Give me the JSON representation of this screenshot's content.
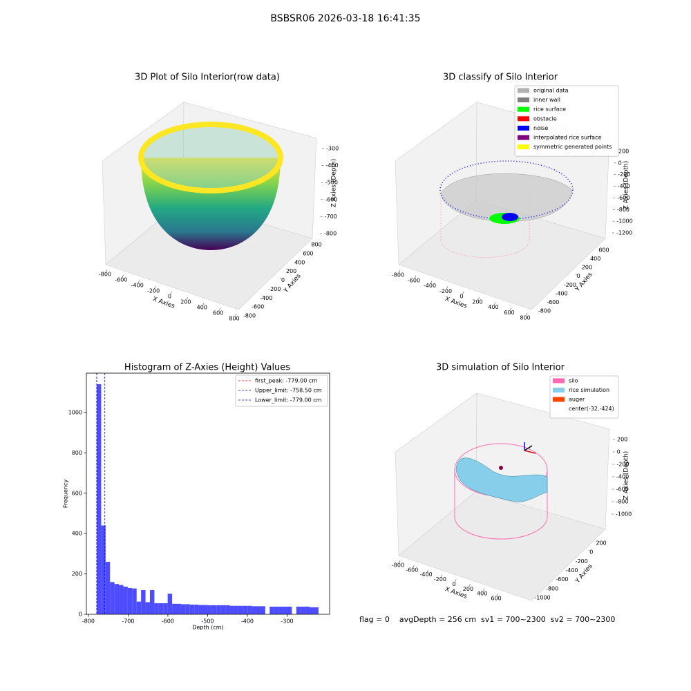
{
  "title": "BSBSR06 2026-03-18 16:41:35",
  "footer": "flag = 0    avgDepth = 256 cm  sv1 = 700~2300  sv2 = 700~2300",
  "chart_data": [
    {
      "type": "surface3d",
      "title": "3D Plot of Silo Interior(row data)",
      "xlabel": "X Axies",
      "ylabel": "Y Axies",
      "zlabel": "Z Axies (Depth)",
      "xlim": [
        -800,
        800
      ],
      "ylim": [
        -800,
        800
      ],
      "zlim": [
        -800,
        -300
      ],
      "xticks": [
        -800,
        -600,
        -400,
        -200,
        0,
        200,
        400,
        600,
        800
      ],
      "yticks": [
        -800,
        -600,
        -400,
        -200,
        0,
        200,
        400,
        600,
        800
      ],
      "zticks": [
        -800,
        -700,
        -600,
        -500,
        -400,
        -300
      ]
    },
    {
      "type": "scatter3d",
      "title": "3D classify of Silo Interior",
      "xlabel": "X Axies",
      "ylabel": "Y Axies",
      "zlabel": "Z Axies (Depth)",
      "xlim": [
        -800,
        800
      ],
      "ylim": [
        -800,
        600
      ],
      "zlim": [
        -1200,
        200
      ],
      "xticks": [
        -800,
        -600,
        -400,
        -200,
        0,
        200,
        400,
        600,
        800
      ],
      "yticks": [
        -800,
        -600,
        -400,
        -200,
        0,
        200,
        400,
        600
      ],
      "zticks": [
        -1200,
        -1000,
        -800,
        -600,
        -400,
        -200,
        0,
        200
      ],
      "legend_items": [
        {
          "name": "original data",
          "color": "#b0b0b0"
        },
        {
          "name": "inner wall",
          "color": "#808080"
        },
        {
          "name": "rice surface",
          "color": "#00ff00"
        },
        {
          "name": "obstacle",
          "color": "#ff0000"
        },
        {
          "name": "noise",
          "color": "#0000ff"
        },
        {
          "name": "interpolated rice surface",
          "color": "#800080"
        },
        {
          "name": "symmetric generated points",
          "color": "#ffff00"
        }
      ]
    },
    {
      "type": "histogram",
      "title": "Histogram of Z-Axies (Height) Values",
      "xlabel": "Depth (cm)",
      "ylabel": "Frequency",
      "color": "#4d4dff",
      "bins": [
        -779,
        -767.84,
        -756.68,
        -745.52,
        -734.36,
        -723.2,
        -712.04,
        -700.88,
        -689.72,
        -678.56,
        -667.4,
        -656.24,
        -645.08,
        -633.92,
        -622.76,
        -611.6,
        -600.44,
        -589.28,
        -578.12,
        -566.96,
        -555.8,
        -544.64,
        -533.48,
        -522.32,
        -511.16,
        -500,
        -488.84,
        -477.68,
        -466.52,
        -455.36,
        -444.2,
        -433.04,
        -421.88,
        -410.72,
        -399.56,
        -388.4,
        -377.24,
        -366.08,
        -354.92,
        -343.76,
        -332.6,
        -321.44,
        -310.28,
        -299.12,
        -287.96,
        -276.8,
        -265.64,
        -254.48,
        -243.32,
        -232.16,
        -221
      ],
      "values": [
        1140,
        440,
        260,
        160,
        150,
        145,
        137,
        130,
        128,
        63,
        120,
        60,
        120,
        55,
        55,
        55,
        102,
        52,
        52,
        50,
        50,
        48,
        48,
        46,
        46,
        45,
        45,
        45,
        45,
        45,
        42,
        42,
        42,
        42,
        42,
        40,
        40,
        40,
        0,
        38,
        38,
        38,
        38,
        38,
        0,
        38,
        38,
        38,
        35,
        35
      ],
      "xlim": [
        -805,
        -193
      ],
      "ylim": [
        0,
        1195
      ],
      "xticks": [
        -800,
        -700,
        -600,
        -500,
        -400,
        -300
      ],
      "yticks": [
        0,
        200,
        400,
        600,
        800,
        1000
      ],
      "vlines": [
        {
          "name": "first_peak: -779.00 cm",
          "value": -779,
          "color": "#ff0000"
        },
        {
          "name": "Upper_limit: -758.50 cm",
          "value": -758.5,
          "color": "#0000ff"
        },
        {
          "name": "Lower_limit: -779.00 cm",
          "value": -779,
          "color": "#0000ff"
        }
      ]
    },
    {
      "type": "mesh3d",
      "title": "3D simulation of Silo Interior",
      "xlabel": "X Axies",
      "ylabel": "Y Axies",
      "zlabel": "Z Axies (Depth)",
      "xlim": [
        -800,
        600
      ],
      "ylim": [
        -1000,
        200
      ],
      "zlim": [
        -1000,
        200
      ],
      "xticks": [
        -800,
        -600,
        -400,
        -200,
        0,
        200,
        400,
        600
      ],
      "yticks": [
        -1000,
        -800,
        -600,
        -400,
        -200,
        0,
        200
      ],
      "zticks": [
        -1000,
        -800,
        -600,
        -400,
        -200,
        0,
        200
      ],
      "legend_items": [
        {
          "name": "silo",
          "color": "#ff69b4"
        },
        {
          "name": "rice simulation",
          "color": "#87ceeb"
        },
        {
          "name": "auger",
          "color": "#ff4500"
        },
        {
          "name": "center(-32,-424)"
        }
      ]
    }
  ]
}
